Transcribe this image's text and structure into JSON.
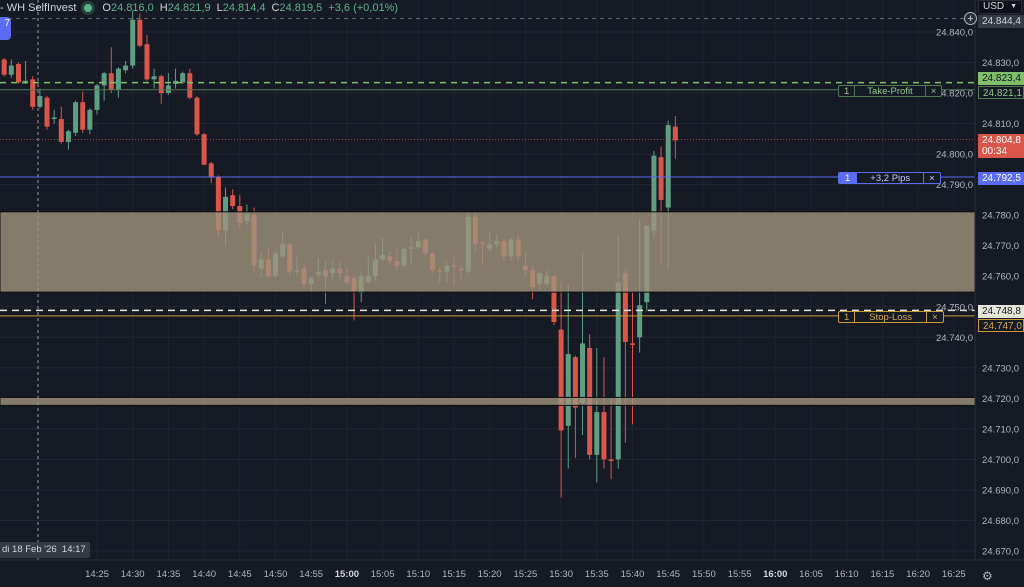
{
  "legend": {
    "symbol": "- WH SelfInvest",
    "o_label": "O",
    "o": "24.816,0",
    "h_label": "H",
    "h": "24.821,9",
    "l_label": "L",
    "l": "24.814,4",
    "c_label": "C",
    "c": "24.819,5",
    "change": "+3,6 (+0,01%)"
  },
  "badge": "7",
  "currency": "USD",
  "colors": {
    "background": "#161a25",
    "up": "#5f9e82",
    "down": "#d9574a",
    "zone": "#a0947d",
    "take_profit": "#7fbf6a",
    "position": "#5b6cf2",
    "stop_loss": "#c99a3a",
    "last_price": "#d9574a"
  },
  "crosshair": {
    "price_label": "24.844,4",
    "time_label": "di 18 Feb '26  14:17",
    "price": 24.8444,
    "time": "14:17"
  },
  "orders": {
    "take_profit": {
      "qty": "1",
      "label": "Take-Profit",
      "close": "×",
      "price_label": "24.821,1",
      "target_label": "24.823,4",
      "price": 24.8211,
      "target": 24.8234
    },
    "position": {
      "qty": "1",
      "label": "+3,2 Pips",
      "close": "×",
      "price_label": "24.792,5",
      "price": 24.7925
    },
    "stop_loss": {
      "qty": "1",
      "label": "Stop-Loss",
      "close": "×",
      "price_label": "24.747,0",
      "trigger_label": "24.748,8",
      "price": 24.747,
      "trigger": 24.7488
    }
  },
  "last_price": {
    "label": "24.804,8",
    "countdown": "00:34",
    "price": 24.8048
  },
  "gear_icon": "gear-icon",
  "chart_data": {
    "type": "candlestick",
    "interval": "1m",
    "ylim": [
      24.665,
      24.848
    ],
    "grid": true,
    "zones": [
      {
        "from": 24.7548,
        "to": 24.7811
      },
      {
        "from": 24.7177,
        "to": 24.7203
      }
    ],
    "y_ticks": [
      "24.840,0",
      "24.830,0",
      "24.820,0",
      "24.810,0",
      "24.800,0",
      "24.790,0",
      "24.780,0",
      "24.770,0",
      "24.760,0",
      "24.750,0",
      "24.740,0",
      "24.730,0",
      "24.720,0",
      "24.710,0",
      "24.700,0",
      "24.690,0",
      "24.680,0",
      "24.670,0"
    ],
    "x_ticks": [
      {
        "t": "14:25"
      },
      {
        "t": "14:30"
      },
      {
        "t": "14:35"
      },
      {
        "t": "14:40"
      },
      {
        "t": "14:45"
      },
      {
        "t": "14:50"
      },
      {
        "t": "14:55"
      },
      {
        "t": "15:00",
        "bold": true
      },
      {
        "t": "15:05"
      },
      {
        "t": "15:10"
      },
      {
        "t": "15:15"
      },
      {
        "t": "15:20"
      },
      {
        "t": "15:25"
      },
      {
        "t": "15:30"
      },
      {
        "t": "15:35"
      },
      {
        "t": "15:40"
      },
      {
        "t": "15:45"
      },
      {
        "t": "15:50"
      },
      {
        "t": "15:55"
      },
      {
        "t": "16:00",
        "bold": true
      },
      {
        "t": "16:05"
      },
      {
        "t": "16:10"
      },
      {
        "t": "16:15"
      },
      {
        "t": "16:20"
      },
      {
        "t": "16:25"
      }
    ],
    "candles_fields": [
      "time",
      "open",
      "high",
      "low",
      "close"
    ],
    "candles": [
      [
        "14:12",
        24.831,
        24.8315,
        24.8255,
        24.826
      ],
      [
        "14:13",
        24.826,
        24.831,
        24.825,
        24.829
      ],
      [
        "14:14",
        24.8295,
        24.83,
        24.823,
        24.8235
      ],
      [
        "14:15",
        24.8235,
        24.8305,
        24.823,
        24.824
      ],
      [
        "14:16",
        24.8245,
        24.8255,
        24.8145,
        24.8155
      ],
      [
        "14:17",
        24.8155,
        24.8215,
        24.815,
        24.819
      ],
      [
        "14:18",
        24.8185,
        24.819,
        24.808,
        24.809
      ],
      [
        "14:19",
        24.8115,
        24.8145,
        24.81,
        24.812
      ],
      [
        "14:20",
        24.8115,
        24.8155,
        24.8035,
        24.804
      ],
      [
        "14:21",
        24.804,
        24.808,
        24.8015,
        24.8075
      ],
      [
        "14:22",
        24.807,
        24.8175,
        24.806,
        24.817
      ],
      [
        "14:23",
        24.817,
        24.8205,
        24.807,
        24.808
      ],
      [
        "14:24",
        24.808,
        24.815,
        24.8065,
        24.8145
      ],
      [
        "14:25",
        24.8145,
        24.823,
        24.813,
        24.8225
      ],
      [
        "14:26",
        24.8225,
        24.827,
        24.8175,
        24.8265
      ],
      [
        "14:27",
        24.8265,
        24.835,
        24.82,
        24.821
      ],
      [
        "14:28",
        24.821,
        24.8285,
        24.8185,
        24.828
      ],
      [
        "14:29",
        24.8275,
        24.8305,
        24.8265,
        24.829
      ],
      [
        "14:30",
        24.829,
        24.847,
        24.828,
        24.844
      ],
      [
        "14:31",
        24.844,
        24.846,
        24.835,
        24.8355
      ],
      [
        "14:32",
        24.836,
        24.839,
        24.824,
        24.8245
      ],
      [
        "14:33",
        24.8245,
        24.828,
        24.8215,
        24.8255
      ],
      [
        "14:34",
        24.8255,
        24.826,
        24.8165,
        24.82
      ],
      [
        "14:35",
        24.82,
        24.8265,
        24.8195,
        24.8225
      ],
      [
        "14:36",
        24.823,
        24.828,
        24.8215,
        24.824
      ],
      [
        "14:37",
        24.8235,
        24.827,
        24.823,
        24.8265
      ],
      [
        "14:38",
        24.8265,
        24.828,
        24.818,
        24.8185
      ],
      [
        "14:39",
        24.8185,
        24.819,
        24.806,
        24.8065
      ],
      [
        "14:40",
        24.8065,
        24.807,
        24.7965,
        24.7965
      ],
      [
        "14:41",
        24.797,
        24.7975,
        24.7905,
        24.7925
      ],
      [
        "14:42",
        24.7925,
        24.793,
        24.7725,
        24.775
      ],
      [
        "14:43",
        24.775,
        24.789,
        24.77,
        24.786
      ],
      [
        "14:44",
        24.7865,
        24.7885,
        24.782,
        24.783
      ],
      [
        "14:45",
        24.783,
        24.7865,
        24.776,
        24.7775
      ],
      [
        "14:46",
        24.778,
        24.7835,
        24.777,
        24.7805
      ],
      [
        "14:47",
        24.78,
        24.7825,
        24.761,
        24.7635
      ],
      [
        "14:48",
        24.7625,
        24.768,
        24.7595,
        24.7655
      ],
      [
        "14:49",
        24.7655,
        24.7695,
        24.7595,
        24.76
      ],
      [
        "14:50",
        24.76,
        24.768,
        24.7595,
        24.7675
      ],
      [
        "14:51",
        24.7665,
        24.7745,
        24.766,
        24.7705
      ],
      [
        "14:52",
        24.7705,
        24.771,
        24.76,
        24.7615
      ],
      [
        "14:53",
        24.7615,
        24.7665,
        24.76,
        24.762
      ],
      [
        "14:54",
        24.7625,
        24.764,
        24.756,
        24.7575
      ],
      [
        "14:55",
        24.7575,
        24.76,
        24.755,
        24.7595
      ],
      [
        "14:56",
        24.7605,
        24.766,
        24.759,
        24.7615
      ],
      [
        "14:57",
        24.762,
        24.765,
        24.751,
        24.76
      ],
      [
        "14:58",
        24.761,
        24.765,
        24.759,
        24.7625
      ],
      [
        "14:59",
        24.7625,
        24.765,
        24.759,
        24.761
      ],
      [
        "15:00",
        24.76,
        24.7625,
        24.757,
        24.758
      ],
      [
        "15:01",
        24.7595,
        24.7605,
        24.7455,
        24.755
      ],
      [
        "15:02",
        24.7545,
        24.7615,
        24.7515,
        24.76
      ],
      [
        "15:03",
        24.758,
        24.7665,
        24.7575,
        24.76
      ],
      [
        "15:04",
        24.76,
        24.7705,
        24.7585,
        24.7655
      ],
      [
        "15:05",
        24.7655,
        24.7725,
        24.765,
        24.767
      ],
      [
        "15:06",
        24.7665,
        24.768,
        24.764,
        24.765
      ],
      [
        "15:07",
        24.765,
        24.769,
        24.762,
        24.7635
      ],
      [
        "15:08",
        24.7635,
        24.7695,
        24.763,
        24.769
      ],
      [
        "15:09",
        24.769,
        24.773,
        24.764,
        24.7695
      ],
      [
        "15:10",
        24.7695,
        24.7745,
        24.769,
        24.7715
      ],
      [
        "15:11",
        24.772,
        24.7725,
        24.7665,
        24.7675
      ],
      [
        "15:12",
        24.7675,
        24.768,
        24.761,
        24.762
      ],
      [
        "15:13",
        24.762,
        24.763,
        24.758,
        24.7615
      ],
      [
        "15:14",
        24.7615,
        24.7645,
        24.758,
        24.7635
      ],
      [
        "15:15",
        24.7635,
        24.767,
        24.757,
        24.763
      ],
      [
        "15:16",
        24.7625,
        24.7635,
        24.7585,
        24.762
      ],
      [
        "15:17",
        24.7615,
        24.781,
        24.761,
        24.7795
      ],
      [
        "15:18",
        24.7795,
        24.781,
        24.768,
        24.7705
      ],
      [
        "15:19",
        24.771,
        24.7715,
        24.7635,
        24.7705
      ],
      [
        "15:20",
        24.769,
        24.7745,
        24.768,
        24.7705
      ],
      [
        "15:21",
        24.7705,
        24.774,
        24.769,
        24.7715
      ],
      [
        "15:22",
        24.7715,
        24.772,
        24.765,
        24.7665
      ],
      [
        "15:23",
        24.7665,
        24.7725,
        24.765,
        24.772
      ],
      [
        "15:24",
        24.772,
        24.7735,
        24.765,
        24.7665
      ],
      [
        "15:25",
        24.7635,
        24.768,
        24.76,
        24.762
      ],
      [
        "15:26",
        24.762,
        24.763,
        24.7525,
        24.7565
      ],
      [
        "15:27",
        24.7575,
        24.7615,
        24.7555,
        24.761
      ],
      [
        "15:28",
        24.7575,
        24.762,
        24.757,
        24.76
      ],
      [
        "15:29",
        24.76,
        24.7605,
        24.744,
        24.745
      ],
      [
        "15:30",
        24.7425,
        24.758,
        24.6875,
        24.7095
      ],
      [
        "15:31",
        24.711,
        24.7575,
        24.697,
        24.7345
      ],
      [
        "15:32",
        24.7335,
        24.734,
        24.7005,
        24.717
      ],
      [
        "15:33",
        24.7185,
        24.7675,
        24.708,
        24.738
      ],
      [
        "15:34",
        24.7365,
        24.741,
        24.7,
        24.7015
      ],
      [
        "15:35",
        24.7015,
        24.7365,
        24.6925,
        24.7155
      ],
      [
        "15:36",
        24.7155,
        24.7335,
        24.697,
        24.7
      ],
      [
        "15:37",
        24.7,
        24.7205,
        24.6935,
        24.6995
      ],
      [
        "15:38",
        24.7,
        24.7735,
        24.697,
        24.758
      ],
      [
        "15:39",
        24.761,
        24.762,
        24.7055,
        24.7385
      ],
      [
        "15:40",
        24.738,
        24.755,
        24.7115,
        24.7375
      ],
      [
        "15:41",
        24.74,
        24.7785,
        24.735,
        24.7505
      ],
      [
        "15:42",
        24.7515,
        24.7765,
        24.7485,
        24.7765
      ],
      [
        "15:43",
        24.775,
        24.801,
        24.7725,
        24.7995
      ],
      [
        "15:44",
        24.799,
        24.8025,
        24.764,
        24.785
      ],
      [
        "15:45",
        24.7825,
        24.811,
        24.7625,
        24.8095
      ],
      [
        "15:46",
        24.809,
        24.8125,
        24.7985,
        24.8045
      ]
    ]
  }
}
